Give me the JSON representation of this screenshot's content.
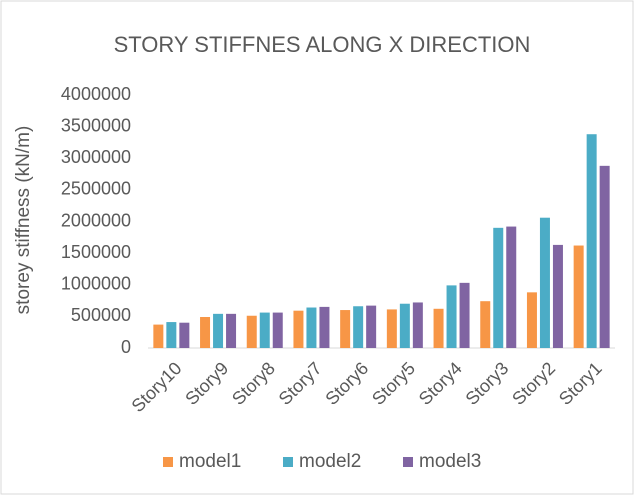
{
  "chart_data": {
    "type": "bar",
    "title": "STORY STIFFNES ALONG X DIRECTION",
    "y_label": "storey stiffness (kN/m)",
    "categories": [
      "Story10",
      "Story9",
      "Story8",
      "Story7",
      "Story6",
      "Story5",
      "Story4",
      "Story3",
      "Story2",
      "Story1"
    ],
    "series": [
      {
        "name": "model1",
        "color": "#f79646",
        "values": [
          370000,
          490000,
          510000,
          590000,
          600000,
          610000,
          620000,
          740000,
          880000,
          1620000
        ]
      },
      {
        "name": "model2",
        "color": "#4bacc6",
        "values": [
          410000,
          540000,
          560000,
          640000,
          660000,
          700000,
          990000,
          1900000,
          2060000,
          3380000
        ]
      },
      {
        "name": "model3",
        "color": "#8064a2",
        "values": [
          400000,
          540000,
          560000,
          650000,
          670000,
          720000,
          1030000,
          1920000,
          1630000,
          2880000
        ]
      }
    ],
    "ylim": [
      0,
      4000000
    ],
    "yticks": [
      0,
      500000,
      1000000,
      1500000,
      2000000,
      2500000,
      3000000,
      3500000,
      4000000
    ],
    "grid": false,
    "legend": "bottom"
  }
}
